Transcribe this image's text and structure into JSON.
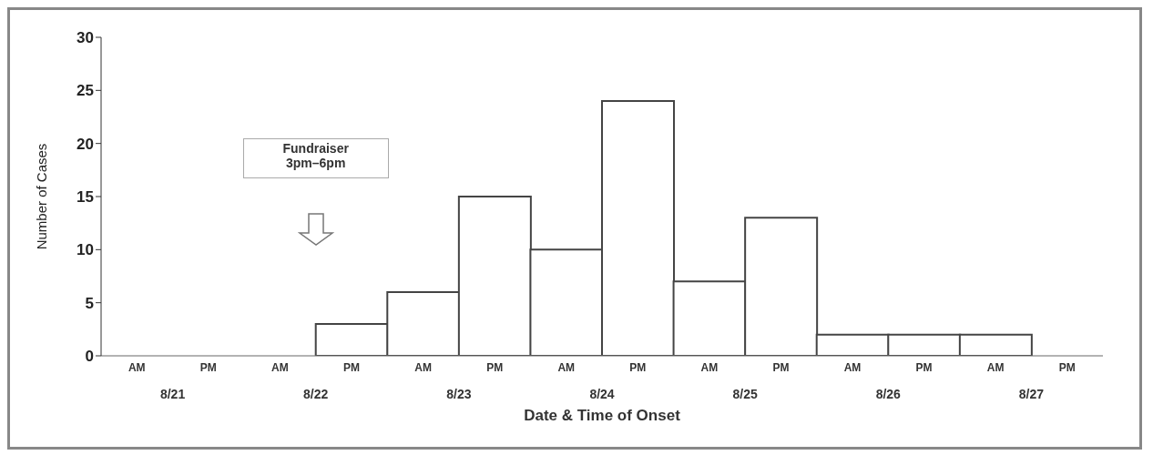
{
  "chart_data": {
    "type": "bar",
    "xlabel": "Date & Time of Onset",
    "ylabel": "Number of Cases",
    "categories": [
      "AM",
      "PM",
      "AM",
      "PM",
      "AM",
      "PM",
      "AM",
      "PM",
      "AM",
      "PM",
      "AM",
      "PM",
      "AM",
      "PM"
    ],
    "values": [
      0,
      0,
      0,
      3,
      6,
      15,
      10,
      24,
      7,
      13,
      2,
      2,
      2,
      0
    ],
    "color": "#ffffff",
    "ylim": [
      0,
      30
    ],
    "yticks": [
      0,
      5,
      10,
      15,
      20,
      25,
      30
    ],
    "annotations": [
      "Fundraiser\n3pm–6pm",
      "8/21",
      "8/22",
      "8/23",
      "8/24",
      "8/25",
      "8/26",
      "8/27"
    ]
  }
}
